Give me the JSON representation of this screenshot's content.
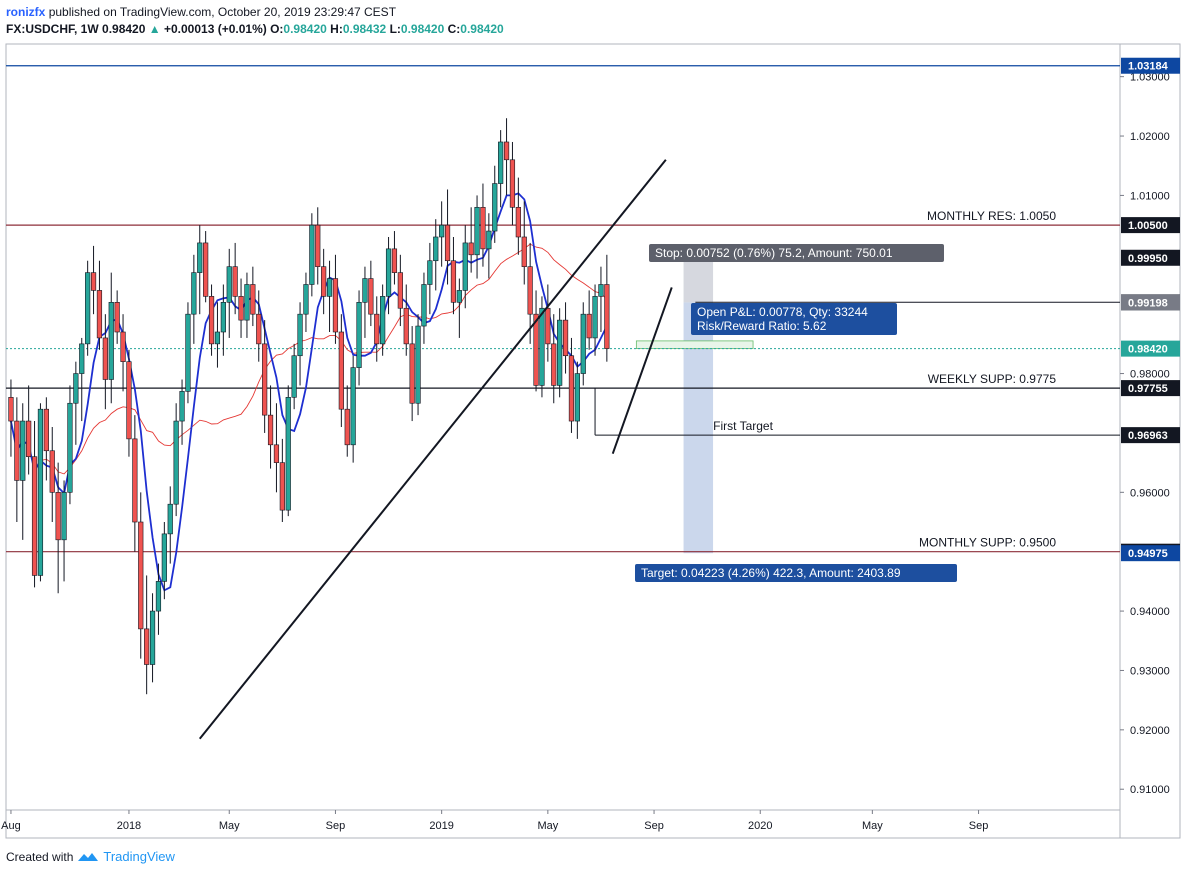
{
  "header": {
    "user": "ronizfx",
    "published": "published on TradingView.com, October 20, 2019 23:29:47 CEST",
    "symbol": "FX:USDCHF, 1W",
    "last": "0.98420",
    "change_arrow": "▲",
    "change": "+0.00013 (+0.01%)",
    "o_label": "O:",
    "o_val": "0.98420",
    "h_label": "H:",
    "h_val": "0.98432",
    "l_label": "L:",
    "l_val": "0.98420",
    "c_label": "C:",
    "c_val": "0.98420"
  },
  "footer": {
    "created": "Created with",
    "brand": "TradingView",
    "logo_icon": "tradingview-logo-icon"
  },
  "chart_data": {
    "type": "candlestick",
    "timeframe": "1W",
    "ylim": [
      0.9065,
      1.0355
    ],
    "y_ticks": [
      "1.03000",
      "1.02000",
      "1.01000",
      "0.98000",
      "0.96000",
      "0.94000",
      "0.93000",
      "0.92000",
      "0.91000"
    ],
    "x_ticks": [
      {
        "label": "Aug",
        "week": 0
      },
      {
        "label": "2018",
        "week": 20
      },
      {
        "label": "May",
        "week": 37
      },
      {
        "label": "Sep",
        "week": 55
      },
      {
        "label": "2019",
        "week": 73
      },
      {
        "label": "May",
        "week": 91
      },
      {
        "label": "Sep",
        "week": 109
      },
      {
        "label": "2020",
        "week": 127
      },
      {
        "label": "May",
        "week": 146
      },
      {
        "label": "Sep",
        "week": 164
      }
    ],
    "price_labels": [
      {
        "value": 1.03184,
        "text": "1.03184",
        "color": "#0d47a1"
      },
      {
        "value": 1.005,
        "text": "1.00500",
        "color": "#131722"
      },
      {
        "value": 0.9995,
        "text": "0.99950",
        "color": "#131722"
      },
      {
        "value": 0.992,
        "text": "0.99200",
        "color": "#131722"
      },
      {
        "value": 0.99198,
        "text": "0.99198",
        "color": "#787b86"
      },
      {
        "value": 0.9842,
        "text": "0.98420",
        "color": "#26a69a"
      },
      {
        "value": 0.97755,
        "text": "0.97755",
        "color": "#131722"
      },
      {
        "value": 0.96963,
        "text": "0.96963",
        "color": "#131722"
      },
      {
        "value": 0.95,
        "text": "0.95000",
        "color": "#131722"
      },
      {
        "value": 0.94975,
        "text": "0.94975",
        "color": "#0d47a1"
      }
    ],
    "levels": [
      {
        "value": 1.03184,
        "label": "",
        "color": "#0d47a1"
      },
      {
        "value": 1.005,
        "label": "MONTHLY RES: 1.0050",
        "color": "#8d2f3a"
      },
      {
        "value": 0.97755,
        "label": "WEEKLY SUPP: 0.9775",
        "color": "#131722"
      },
      {
        "value": 0.95,
        "label": "MONTHLY SUPP: 0.9500",
        "color": "#8d2f3a"
      }
    ],
    "first_target": {
      "value": 0.96963,
      "label": "First Target",
      "from_week": 99
    },
    "position": {
      "stop_label": "Stop: 0.00752 (0.76%) 75.2, Amount: 750.01",
      "open_label": "Open P&L: 0.00778, Qty: 33244",
      "rr_label": "Risk/Reward Ratio: 5.62",
      "target_label": "Target: 0.04223 (4.26%) 422.3, Amount: 2403.89",
      "entry": 0.99198,
      "stop": 0.9995,
      "target": 0.94975,
      "start_week": 114,
      "end_week": 119
    },
    "trendlines": [
      {
        "from": [
          32,
          0.9185
        ],
        "to": [
          111,
          1.016
        ]
      },
      {
        "from": [
          102,
          0.9665
        ],
        "to": [
          112,
          0.9945
        ]
      }
    ],
    "ohlc": [
      [
        0.976,
        0.979,
        0.966,
        0.972
      ],
      [
        0.972,
        0.976,
        0.955,
        0.962
      ],
      [
        0.962,
        0.975,
        0.952,
        0.972
      ],
      [
        0.972,
        0.978,
        0.963,
        0.966
      ],
      [
        0.966,
        0.972,
        0.944,
        0.946
      ],
      [
        0.946,
        0.975,
        0.945,
        0.974
      ],
      [
        0.974,
        0.976,
        0.962,
        0.967
      ],
      [
        0.967,
        0.971,
        0.955,
        0.96
      ],
      [
        0.96,
        0.965,
        0.943,
        0.952
      ],
      [
        0.952,
        0.962,
        0.945,
        0.96
      ],
      [
        0.96,
        0.978,
        0.958,
        0.975
      ],
      [
        0.975,
        0.982,
        0.968,
        0.98
      ],
      [
        0.98,
        0.986,
        0.972,
        0.985
      ],
      [
        0.985,
        0.999,
        0.983,
        0.997
      ],
      [
        0.997,
        1.0015,
        0.99,
        0.994
      ],
      [
        0.994,
        0.999,
        0.984,
        0.986
      ],
      [
        0.986,
        0.99,
        0.974,
        0.979
      ],
      [
        0.979,
        0.997,
        0.975,
        0.992
      ],
      [
        0.992,
        0.994,
        0.985,
        0.987
      ],
      [
        0.987,
        0.99,
        0.977,
        0.982
      ],
      [
        0.982,
        0.984,
        0.966,
        0.969
      ],
      [
        0.969,
        0.973,
        0.95,
        0.955
      ],
      [
        0.955,
        0.96,
        0.932,
        0.937
      ],
      [
        0.937,
        0.946,
        0.926,
        0.931
      ],
      [
        0.931,
        0.943,
        0.928,
        0.94
      ],
      [
        0.94,
        0.948,
        0.936,
        0.945
      ],
      [
        0.945,
        0.955,
        0.942,
        0.953
      ],
      [
        0.953,
        0.961,
        0.948,
        0.958
      ],
      [
        0.958,
        0.975,
        0.956,
        0.972
      ],
      [
        0.972,
        0.979,
        0.968,
        0.977
      ],
      [
        0.977,
        0.992,
        0.975,
        0.99
      ],
      [
        0.99,
        1.0,
        0.985,
        0.997
      ],
      [
        0.997,
        1.005,
        0.99,
        1.002
      ],
      [
        1.002,
        1.004,
        0.992,
        0.993
      ],
      [
        0.993,
        0.995,
        0.983,
        0.985
      ],
      [
        0.985,
        0.992,
        0.981,
        0.987
      ],
      [
        0.987,
        0.995,
        0.983,
        0.992
      ],
      [
        0.992,
        1.001,
        0.986,
        0.998
      ],
      [
        0.998,
        1.002,
        0.99,
        0.993
      ],
      [
        0.993,
        0.996,
        0.986,
        0.989
      ],
      [
        0.989,
        0.997,
        0.986,
        0.995
      ],
      [
        0.995,
        0.998,
        0.988,
        0.99
      ],
      [
        0.99,
        0.994,
        0.982,
        0.985
      ],
      [
        0.985,
        0.989,
        0.97,
        0.973
      ],
      [
        0.973,
        0.978,
        0.964,
        0.968
      ],
      [
        0.968,
        0.975,
        0.96,
        0.965
      ],
      [
        0.965,
        0.969,
        0.955,
        0.957
      ],
      [
        0.957,
        0.978,
        0.956,
        0.976
      ],
      [
        0.976,
        0.985,
        0.974,
        0.983
      ],
      [
        0.983,
        0.992,
        0.978,
        0.99
      ],
      [
        0.99,
        0.997,
        0.987,
        0.995
      ],
      [
        0.995,
        1.007,
        0.993,
        1.005
      ],
      [
        1.005,
        1.008,
        0.995,
        0.998
      ],
      [
        0.998,
        1.001,
        0.99,
        0.993
      ],
      [
        0.993,
        0.999,
        0.987,
        0.996
      ],
      [
        0.996,
        1.0,
        0.985,
        0.987
      ],
      [
        0.987,
        0.99,
        0.971,
        0.974
      ],
      [
        0.974,
        0.978,
        0.966,
        0.968
      ],
      [
        0.968,
        0.983,
        0.965,
        0.981
      ],
      [
        0.981,
        0.994,
        0.978,
        0.992
      ],
      [
        0.992,
        0.998,
        0.986,
        0.996
      ],
      [
        0.996,
        0.999,
        0.988,
        0.99
      ],
      [
        0.99,
        0.993,
        0.982,
        0.985
      ],
      [
        0.985,
        0.995,
        0.983,
        0.993
      ],
      [
        0.993,
        1.003,
        0.99,
        1.001
      ],
      [
        1.001,
        1.004,
        0.995,
        0.997
      ],
      [
        0.997,
        1.0,
        0.988,
        0.991
      ],
      [
        0.991,
        0.995,
        0.983,
        0.985
      ],
      [
        0.985,
        0.988,
        0.972,
        0.975
      ],
      [
        0.975,
        0.99,
        0.973,
        0.988
      ],
      [
        0.988,
        0.997,
        0.985,
        0.995
      ],
      [
        0.995,
        1.002,
        0.99,
        0.999
      ],
      [
        0.999,
        1.006,
        0.994,
        1.003
      ],
      [
        1.003,
        1.009,
        0.998,
        1.005
      ],
      [
        1.005,
        1.011,
        0.995,
        0.999
      ],
      [
        0.999,
        1.003,
        0.99,
        0.992
      ],
      [
        0.992,
        0.996,
        0.986,
        0.994
      ],
      [
        0.994,
        1.005,
        0.991,
        1.002
      ],
      [
        1.002,
        1.008,
        0.997,
        1.0
      ],
      [
        1.0,
        1.01,
        0.996,
        1.008
      ],
      [
        1.008,
        1.012,
        0.998,
        1.001
      ],
      [
        1.001,
        1.007,
        0.996,
        1.004
      ],
      [
        1.004,
        1.015,
        1.002,
        1.012
      ],
      [
        1.012,
        1.021,
        1.008,
        1.019
      ],
      [
        1.019,
        1.023,
        1.01,
        1.016
      ],
      [
        1.016,
        1.019,
        1.005,
        1.008
      ],
      [
        1.008,
        1.013,
        1.0,
        1.003
      ],
      [
        1.003,
        1.009,
        0.995,
        0.998
      ],
      [
        0.998,
        1.002,
        0.985,
        0.99
      ],
      [
        0.99,
        0.994,
        0.977,
        0.978
      ],
      [
        0.978,
        0.993,
        0.976,
        0.991
      ],
      [
        0.991,
        0.995,
        0.982,
        0.985
      ],
      [
        0.985,
        0.99,
        0.975,
        0.978
      ],
      [
        0.978,
        0.991,
        0.976,
        0.989
      ],
      [
        0.989,
        0.992,
        0.98,
        0.983
      ],
      [
        0.983,
        0.986,
        0.97,
        0.972
      ],
      [
        0.972,
        0.982,
        0.969,
        0.98
      ],
      [
        0.98,
        0.992,
        0.978,
        0.99
      ],
      [
        0.99,
        0.994,
        0.984,
        0.986
      ],
      [
        0.986,
        0.995,
        0.983,
        0.993
      ],
      [
        0.993,
        0.998,
        0.987,
        0.995
      ],
      [
        0.995,
        1.0,
        0.982,
        0.9842
      ]
    ]
  }
}
